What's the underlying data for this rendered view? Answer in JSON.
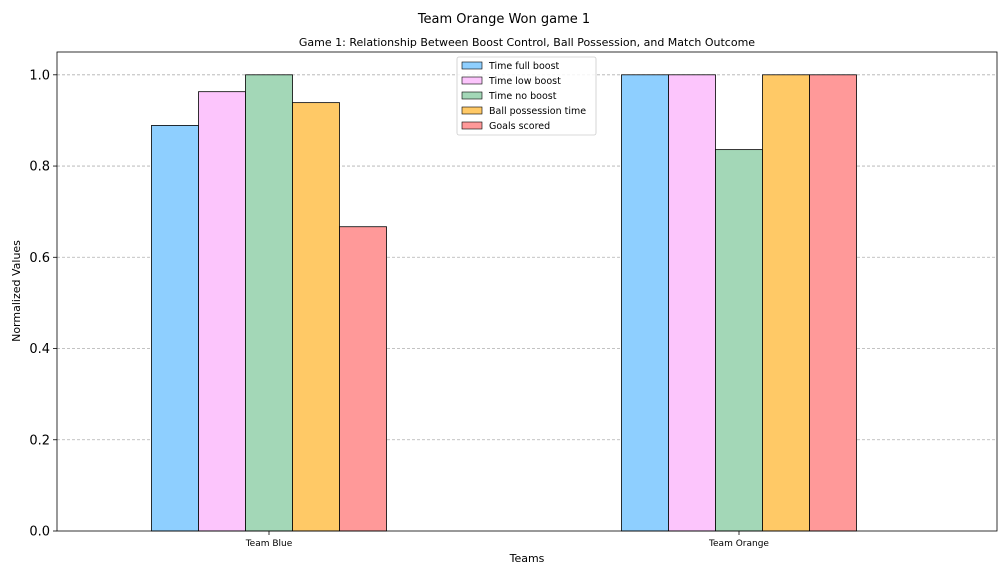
{
  "chart_data": {
    "type": "bar",
    "suptitle": "Team Orange Won game 1",
    "title": "Game 1: Relationship Between Boost Control, Ball Possession, and Match Outcome",
    "xlabel": "Teams",
    "ylabel": "Normalized Values",
    "ylim": [
      0,
      1.05
    ],
    "yticks": [
      "0.0",
      "0.2",
      "0.4",
      "0.6",
      "0.8",
      "1.0"
    ],
    "grid": "y-dashed",
    "legend_position": "top-center",
    "categories": [
      "Team Blue",
      "Team Orange"
    ],
    "series": [
      {
        "name": "Time full boost",
        "color": "#8ecfff",
        "values": [
          0.889,
          1.0
        ]
      },
      {
        "name": "Time low boost",
        "color": "#fcc5fc",
        "values": [
          0.963,
          1.0
        ]
      },
      {
        "name": "Time no boost",
        "color": "#a3d7b7",
        "values": [
          1.0,
          0.836
        ]
      },
      {
        "name": "Ball possession time",
        "color": "#ffc966",
        "values": [
          0.939,
          1.0
        ]
      },
      {
        "name": "Goals scored",
        "color": "#ff9999",
        "values": [
          0.667,
          1.0
        ]
      }
    ]
  }
}
